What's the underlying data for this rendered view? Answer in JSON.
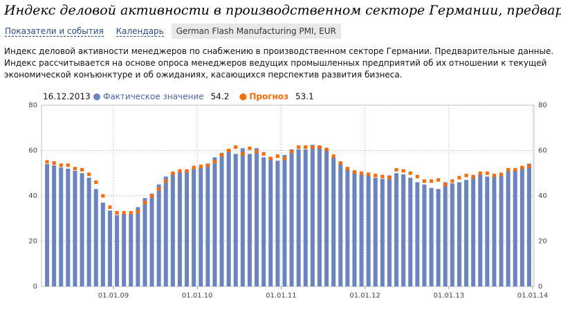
{
  "header": {
    "title": "Индекс деловой активности в производственном секторе Германии, предварит."
  },
  "tabs": [
    "Показатели и события",
    "Календарь",
    "German Flash Manufacturing PMI, EUR"
  ],
  "description": [
    "Индекс деловой активности менеджеров по снабжению в производственном секторе Германии. Предварительные данные.",
    "Индекс рассчитывается на основе опроса менеджеров ведущих промышленных предприятий об их отношении к текущей",
    "экономической конъюнктуре и об ожиданиях, касающихся перспектив развития бизнеса."
  ],
  "chart_data": {
    "type": "bar",
    "date": "16.12.2013",
    "grid": true,
    "xlim": [
      0,
      70
    ],
    "xticks": [
      {
        "value": 10,
        "label": "01.01.09"
      },
      {
        "value": 22,
        "label": "01.01.10"
      },
      {
        "value": 34,
        "label": "01.01.11"
      },
      {
        "value": 46,
        "label": "01.01.12"
      },
      {
        "value": 58,
        "label": "01.01.13"
      },
      {
        "value": 70,
        "label": "01.01.14"
      }
    ],
    "ylim": [
      0,
      80
    ],
    "yticks": [
      0,
      20,
      40,
      60,
      80
    ],
    "series": [
      {
        "name": "Фактическое значение",
        "color": "#6a84c2",
        "mark": "bar",
        "values": [
          54,
          53.5,
          52.5,
          52,
          51,
          50,
          48,
          43,
          37,
          33.5,
          31.5,
          32,
          32,
          35,
          39,
          41,
          45,
          48.5,
          50,
          50.5,
          51,
          52,
          52.5,
          54,
          57,
          59,
          60.5,
          58.5,
          61,
          58.5,
          61,
          57,
          57,
          55.5,
          58,
          60.5,
          60.5,
          60.5,
          62.5,
          62,
          60.5,
          57,
          54.5,
          52,
          50.5,
          49.5,
          49,
          48,
          47.5,
          49,
          50,
          49.5,
          48,
          46,
          45,
          43.5,
          43,
          46,
          45.5,
          46,
          47,
          48.5,
          49.5,
          48.5,
          48.5,
          49,
          51,
          51.5,
          52.5,
          54.2
        ]
      },
      {
        "name": "Прогноз",
        "color": "#ff6a00",
        "mark": "dot",
        "values": [
          55,
          54.5,
          53.5,
          53.5,
          52,
          51.5,
          49.5,
          46,
          40,
          35,
          32.5,
          32.5,
          32.5,
          33,
          37,
          40,
          43,
          46.5,
          50,
          51,
          51,
          52.5,
          53,
          53.5,
          55,
          58,
          60,
          61.5,
          58.5,
          61,
          59.5,
          58.5,
          56.5,
          57.5,
          56.5,
          59.5,
          61.5,
          61.5,
          61.5,
          61.5,
          60.5,
          57.5,
          54.5,
          52,
          50.5,
          50,
          49.5,
          49,
          48.5,
          48,
          51.5,
          51,
          50,
          48.5,
          46.5,
          46.5,
          47,
          45,
          46.5,
          48,
          49,
          48.5,
          50,
          50,
          49,
          49.5,
          51.5,
          51.5,
          52.5,
          53.1
        ]
      }
    ]
  }
}
